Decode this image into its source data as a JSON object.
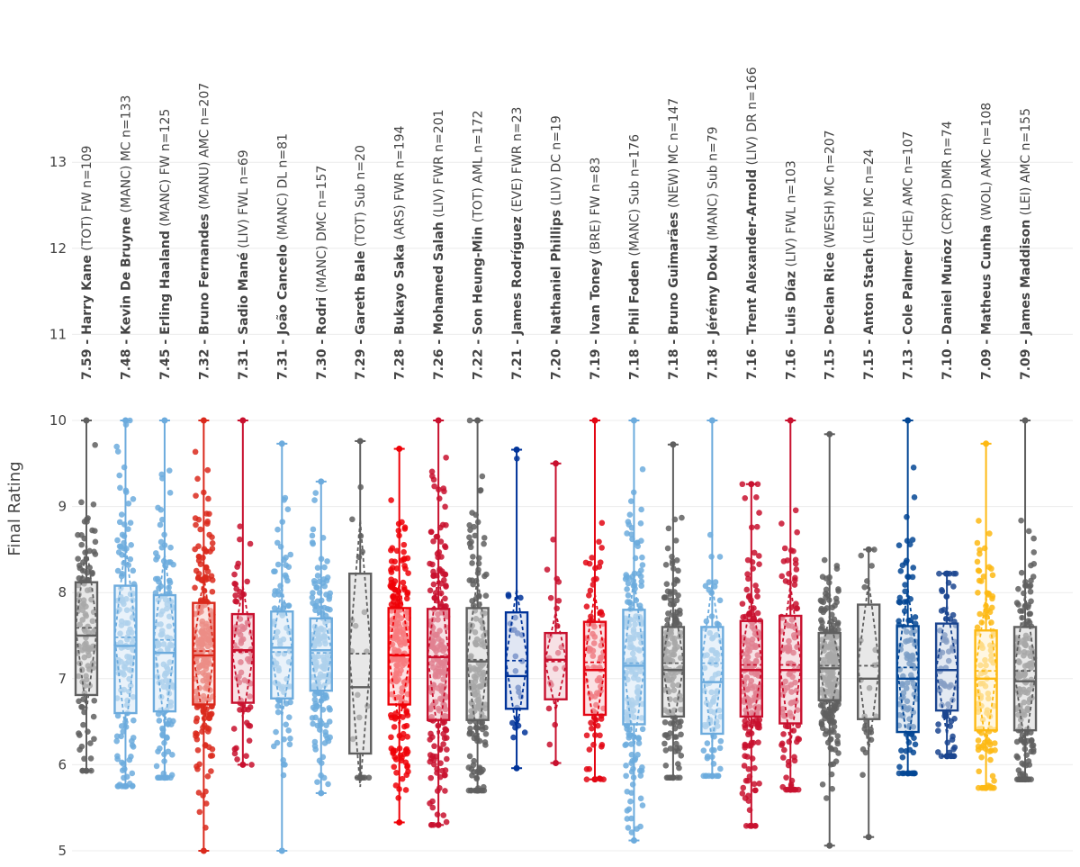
{
  "chart_data": {
    "type": "box",
    "title": "",
    "xlabel": "",
    "ylabel": "Final Rating",
    "ylim": [
      5,
      13.6
    ],
    "yticks": [
      5,
      6,
      7,
      8,
      9,
      10,
      11,
      12,
      13
    ],
    "grid": true,
    "players": [
      {
        "avg": "7.59",
        "name": "Harry Kane",
        "club": "(TOT)",
        "pos": "FW",
        "n": "n=109",
        "color": "#5f5f5f",
        "fill": "#d9d9d9",
        "q1": 6.81,
        "median": 7.5,
        "q3": 8.12,
        "mean": 7.59,
        "lo": 5.93,
        "hi": 10.0
      },
      {
        "avg": "7.48",
        "name": "Kevin De Bruyne",
        "club": "(MANC)",
        "pos": "MC",
        "n": "n=133",
        "color": "#6cabdd",
        "fill": "#dbeaf7",
        "q1": 6.6,
        "median": 7.38,
        "q3": 8.08,
        "mean": 7.48,
        "lo": 5.75,
        "hi": 10.0
      },
      {
        "avg": "7.45",
        "name": "Erling Haaland",
        "club": "(MANC)",
        "pos": "FW",
        "n": "n=125",
        "color": "#6cabdd",
        "fill": "#dbeaf7",
        "q1": 6.62,
        "median": 7.3,
        "q3": 7.97,
        "mean": 7.45,
        "lo": 5.85,
        "hi": 10.0
      },
      {
        "avg": "7.32",
        "name": "Bruno Fernandes",
        "club": "(MANU)",
        "pos": "AMC",
        "n": "n=207",
        "color": "#da291c",
        "fill": "#f6d0cd",
        "q1": 6.7,
        "median": 7.27,
        "q3": 7.88,
        "mean": 7.32,
        "lo": 5.0,
        "hi": 10.0
      },
      {
        "avg": "7.31",
        "name": "Sadio Mané",
        "club": "(LIV)",
        "pos": "FWL",
        "n": "n=69",
        "color": "#c8102e",
        "fill": "#f2cdd3",
        "q1": 6.72,
        "median": 7.33,
        "q3": 7.75,
        "mean": 7.31,
        "lo": 6.0,
        "hi": 10.0
      },
      {
        "avg": "7.31",
        "name": "João Cancelo",
        "club": "(MANC)",
        "pos": "DL",
        "n": "n=81",
        "color": "#6cabdd",
        "fill": "#dbeaf7",
        "q1": 6.77,
        "median": 7.36,
        "q3": 7.78,
        "mean": 7.31,
        "lo": 5.0,
        "hi": 9.73
      },
      {
        "avg": "7.30",
        "name": "Rodri",
        "club": "(MANC)",
        "pos": "DMC",
        "n": "n=157",
        "color": "#6cabdd",
        "fill": "#dbeaf7",
        "q1": 6.86,
        "median": 7.33,
        "q3": 7.7,
        "mean": 7.3,
        "lo": 5.67,
        "hi": 9.29
      },
      {
        "avg": "7.29",
        "name": "Gareth Bale",
        "club": "(TOT)",
        "pos": "Sub",
        "n": "n=20",
        "color": "#5f5f5f",
        "fill": "#d9d9d9",
        "q1": 6.13,
        "median": 6.9,
        "q3": 8.22,
        "mean": 7.29,
        "lo": 5.85,
        "hi": 9.76
      },
      {
        "avg": "7.28",
        "name": "Bukayo Saka",
        "club": "(ARS)",
        "pos": "FWR",
        "n": "n=194",
        "color": "#ef0107",
        "fill": "#fccdce",
        "q1": 6.7,
        "median": 7.27,
        "q3": 7.82,
        "mean": 7.28,
        "lo": 5.33,
        "hi": 9.67
      },
      {
        "avg": "7.26",
        "name": "Mohamed Salah",
        "club": "(LIV)",
        "pos": "FWR",
        "n": "n=201",
        "color": "#c8102e",
        "fill": "#f2cdd3",
        "q1": 6.52,
        "median": 7.25,
        "q3": 7.81,
        "mean": 7.26,
        "lo": 5.3,
        "hi": 10.0
      },
      {
        "avg": "7.22",
        "name": "Son Heung-Min",
        "club": "(TOT)",
        "pos": "AML",
        "n": "n=172",
        "color": "#5f5f5f",
        "fill": "#d9d9d9",
        "q1": 6.52,
        "median": 7.2,
        "q3": 7.82,
        "mean": 7.22,
        "lo": 5.7,
        "hi": 10.0
      },
      {
        "avg": "7.21",
        "name": "James Rodríguez",
        "club": "(EVE)",
        "pos": "FWR",
        "n": "n=23",
        "color": "#003399",
        "fill": "#ccd6eb",
        "q1": 6.65,
        "median": 7.03,
        "q3": 7.77,
        "mean": 7.21,
        "lo": 5.96,
        "hi": 9.66
      },
      {
        "avg": "7.20",
        "name": "Nathaniel Phillips",
        "club": "(LIV)",
        "pos": "DC",
        "n": "n=19",
        "color": "#c8102e",
        "fill": "#f2cdd3",
        "q1": 6.76,
        "median": 7.22,
        "q3": 7.53,
        "mean": 7.2,
        "lo": 6.02,
        "hi": 9.5
      },
      {
        "avg": "7.19",
        "name": "Ivan Toney",
        "club": "(BRE)",
        "pos": "FW",
        "n": "n=83",
        "color": "#e30613",
        "fill": "#f9cdd0",
        "q1": 6.58,
        "median": 7.1,
        "q3": 7.66,
        "mean": 7.19,
        "lo": 5.83,
        "hi": 10.0
      },
      {
        "avg": "7.18",
        "name": "Phil Foden",
        "club": "(MANC)",
        "pos": "Sub",
        "n": "n=176",
        "color": "#6cabdd",
        "fill": "#dbeaf7",
        "q1": 6.47,
        "median": 7.15,
        "q3": 7.8,
        "mean": 7.18,
        "lo": 5.12,
        "hi": 10.0
      },
      {
        "avg": "7.18",
        "name": "Bruno Guimarães",
        "club": "(NEW)",
        "pos": "MC",
        "n": "n=147",
        "color": "#5f5f5f",
        "fill": "#d9d9d9",
        "q1": 6.56,
        "median": 7.1,
        "q3": 7.6,
        "mean": 7.18,
        "lo": 5.85,
        "hi": 9.72
      },
      {
        "avg": "7.18",
        "name": "Jérémy Doku",
        "club": "(MANC)",
        "pos": "Sub",
        "n": "n=79",
        "color": "#6cabdd",
        "fill": "#dbeaf7",
        "q1": 6.36,
        "median": 6.96,
        "q3": 7.6,
        "mean": 7.18,
        "lo": 5.87,
        "hi": 10.0
      },
      {
        "avg": "7.16",
        "name": "Trent Alexander-Arnold",
        "club": "(LIV)",
        "pos": "DR",
        "n": "n=166",
        "color": "#c8102e",
        "fill": "#f2cdd3",
        "q1": 6.56,
        "median": 7.1,
        "q3": 7.67,
        "mean": 7.16,
        "lo": 5.29,
        "hi": 9.26
      },
      {
        "avg": "7.16",
        "name": "Luis Díaz",
        "club": "(LIV)",
        "pos": "FWL",
        "n": "n=103",
        "color": "#c8102e",
        "fill": "#f2cdd3",
        "q1": 6.48,
        "median": 7.1,
        "q3": 7.73,
        "mean": 7.16,
        "lo": 5.71,
        "hi": 10.0
      },
      {
        "avg": "7.15",
        "name": "Declan Rice",
        "club": "(WESH)",
        "pos": "MC",
        "n": "n=207",
        "color": "#5f5f5f",
        "fill": "#d9d9d9",
        "q1": 6.75,
        "median": 7.12,
        "q3": 7.53,
        "mean": 7.15,
        "lo": 5.06,
        "hi": 9.84
      },
      {
        "avg": "7.15",
        "name": "Anton Stach",
        "club": "(LEE)",
        "pos": "MC",
        "n": "n=24",
        "color": "#5f5f5f",
        "fill": "#d9d9d9",
        "q1": 6.53,
        "median": 7.0,
        "q3": 7.86,
        "mean": 7.15,
        "lo": 5.16,
        "hi": 8.5
      },
      {
        "avg": "7.13",
        "name": "Cole Palmer",
        "club": "(CHE)",
        "pos": "AMC",
        "n": "n=107",
        "color": "#034694",
        "fill": "#cddaea",
        "q1": 6.38,
        "median": 7.0,
        "q3": 7.61,
        "mean": 7.13,
        "lo": 5.9,
        "hi": 10.0
      },
      {
        "avg": "7.10",
        "name": "Daniel Muñoz",
        "club": "(CRYP)",
        "pos": "DMR",
        "n": "n=74",
        "color": "#1b458f",
        "fill": "#d1dae9",
        "q1": 6.63,
        "median": 7.1,
        "q3": 7.64,
        "mean": 7.1,
        "lo": 6.1,
        "hi": 8.22
      },
      {
        "avg": "7.09",
        "name": "Matheus Cunha",
        "club": "(WOL)",
        "pos": "AMC",
        "n": "n=108",
        "color": "#fdb913",
        "fill": "#fff1cf",
        "q1": 6.4,
        "median": 7.0,
        "q3": 7.56,
        "mean": 7.09,
        "lo": 5.73,
        "hi": 9.73
      },
      {
        "avg": "7.09",
        "name": "James Maddison",
        "club": "(LEI)",
        "pos": "AMC",
        "n": "n=155",
        "color": "#5f5f5f",
        "fill": "#d9d9d9",
        "q1": 6.4,
        "median": 6.97,
        "q3": 7.6,
        "mean": 7.09,
        "lo": 5.83,
        "hi": 10.0
      }
    ]
  }
}
